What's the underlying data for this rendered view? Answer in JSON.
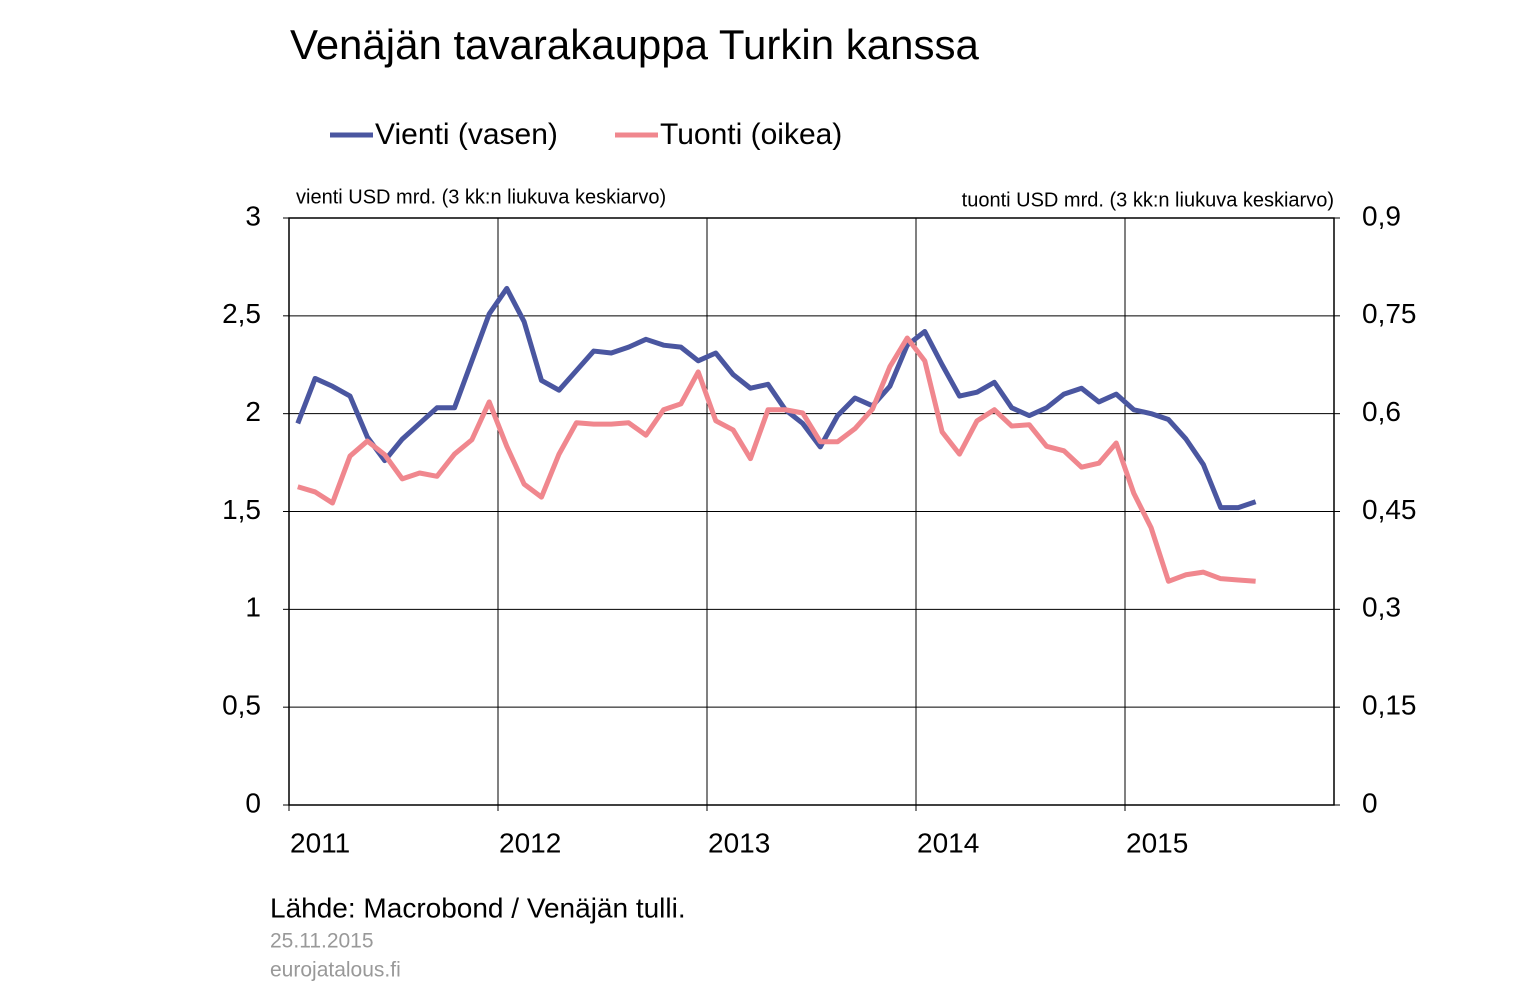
{
  "chart_data": {
    "type": "line",
    "title": "Venäjän tavarakauppa Turkin kanssa",
    "ylabel": "vienti USD mrd. (3 kk:n liukuva keskiarvo)",
    "y2label": "tuonti USD mrd. (3 kk:n liukuva keskiarvo)",
    "source": "Lähde: Macrobond / Venäjän tulli.",
    "footnotes": [
      "25.11.2015",
      "eurojatalous.fi"
    ],
    "xlim": [
      2011,
      2016
    ],
    "xticks": [
      2011,
      2012,
      2013,
      2014,
      2015
    ],
    "ylim": [
      0,
      3
    ],
    "yticks": [
      0,
      {
        "value": 0.5,
        "label": "0,5"
      },
      1,
      {
        "value": 1.5,
        "label": "1,5"
      },
      2,
      {
        "value": 2.5,
        "label": "2,5"
      },
      3
    ],
    "y2lim": [
      0,
      0.9
    ],
    "y2ticks": [
      0,
      {
        "value": 0.15,
        "label": "0,15"
      },
      {
        "value": 0.3,
        "label": "0,3"
      },
      {
        "value": 0.45,
        "label": "0,45"
      },
      {
        "value": 0.6,
        "label": "0,6"
      },
      {
        "value": 0.75,
        "label": "0,75"
      },
      {
        "value": 0.9,
        "label": "0,9"
      }
    ],
    "grid": true,
    "x": [
      2011.042,
      2011.125,
      2011.208,
      2011.292,
      2011.375,
      2011.458,
      2011.542,
      2011.625,
      2011.708,
      2011.792,
      2011.875,
      2011.958,
      2012.042,
      2012.125,
      2012.208,
      2012.292,
      2012.375,
      2012.458,
      2012.542,
      2012.625,
      2012.708,
      2012.792,
      2012.875,
      2012.958,
      2013.042,
      2013.125,
      2013.208,
      2013.292,
      2013.375,
      2013.458,
      2013.542,
      2013.625,
      2013.708,
      2013.792,
      2013.875,
      2013.958,
      2014.042,
      2014.125,
      2014.208,
      2014.292,
      2014.375,
      2014.458,
      2014.542,
      2014.625,
      2014.708,
      2014.792,
      2014.875,
      2014.958,
      2015.042,
      2015.125,
      2015.208,
      2015.292,
      2015.375,
      2015.458,
      2015.542,
      2015.625
    ],
    "series": [
      {
        "name": "Vienti (vasen)",
        "color": "#4a56a0",
        "axis": "y",
        "values": [
          1.95,
          2.18,
          2.14,
          2.09,
          1.88,
          1.76,
          1.87,
          1.95,
          2.03,
          2.03,
          2.27,
          2.51,
          2.64,
          2.47,
          2.17,
          2.12,
          2.22,
          2.32,
          2.31,
          2.34,
          2.38,
          2.35,
          2.34,
          2.27,
          2.31,
          2.2,
          2.13,
          2.15,
          2.02,
          1.95,
          1.83,
          1.99,
          2.08,
          2.04,
          2.14,
          2.35,
          2.42,
          2.25,
          2.09,
          2.11,
          2.16,
          2.03,
          1.99,
          2.03,
          2.1,
          2.13,
          2.06,
          2.1,
          2.02,
          2.0,
          1.97,
          1.87,
          1.74,
          1.52,
          1.52,
          1.55
        ]
      },
      {
        "name": "Tuonti (oikea)",
        "color": "#f0878e",
        "axis": "y2",
        "values": [
          0.488,
          0.48,
          0.463,
          0.535,
          0.558,
          0.537,
          0.5,
          0.509,
          0.504,
          0.538,
          0.56,
          0.618,
          0.55,
          0.492,
          0.472,
          0.538,
          0.586,
          0.584,
          0.584,
          0.586,
          0.567,
          0.606,
          0.615,
          0.664,
          0.589,
          0.575,
          0.531,
          0.606,
          0.606,
          0.601,
          0.557,
          0.557,
          0.577,
          0.607,
          0.672,
          0.716,
          0.681,
          0.572,
          0.538,
          0.589,
          0.606,
          0.581,
          0.583,
          0.55,
          0.543,
          0.518,
          0.524,
          0.555,
          0.478,
          0.425,
          0.343,
          0.353,
          0.357,
          0.347,
          0.345,
          0.343
        ]
      }
    ]
  }
}
